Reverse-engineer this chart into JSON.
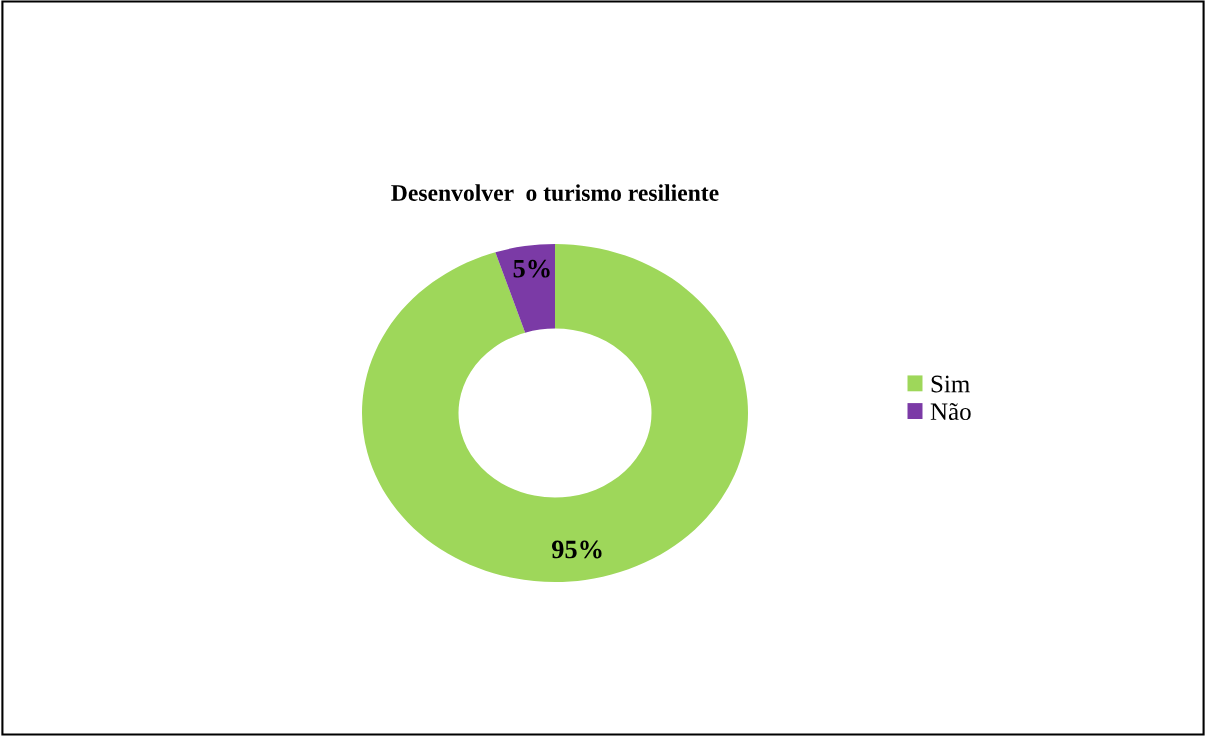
{
  "chart_data": {
    "type": "donut",
    "title": "Desenvolver  o turismo resiliente",
    "categories": [
      "Sim",
      "Não"
    ],
    "values": [
      95,
      5
    ],
    "colors": [
      "#9ed75a",
      "#7b3aa6"
    ],
    "value_labels": [
      "95%",
      "5%"
    ],
    "legend": "right"
  }
}
